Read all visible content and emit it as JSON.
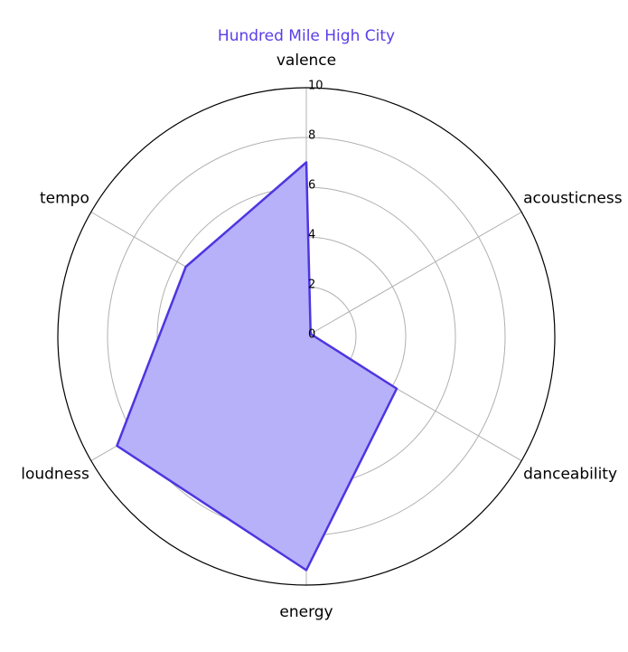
{
  "chart_data": {
    "type": "radar",
    "title": "Hundred Mile High City",
    "axes": [
      "valence",
      "acousticness",
      "danceability",
      "energy",
      "loudness",
      "tempo"
    ],
    "series": [
      {
        "values": [
          7.0,
          0.2,
          4.2,
          9.4,
          8.8,
          5.6
        ]
      }
    ],
    "rlim": [
      0,
      10
    ],
    "rticks": [
      "0",
      "2",
      "4",
      "6",
      "8",
      "10"
    ],
    "grid": true,
    "colors": {
      "title": "#5a3ee8",
      "line": "#4e35e0",
      "fill": "#b6b1f8",
      "grid": "#b0b0b0",
      "frame": "#000000"
    }
  }
}
